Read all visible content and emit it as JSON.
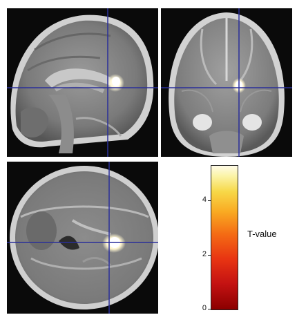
{
  "colorbar": {
    "label": "T-value",
    "ticks": [
      {
        "label": "4",
        "value": 4
      },
      {
        "label": "2",
        "value": 2
      },
      {
        "label": "0",
        "value": 0
      }
    ],
    "max_value": 5.3,
    "colors": [
      "#8b0000",
      "#e83412",
      "#f9aa22",
      "#f7d848",
      "#fffbe8"
    ]
  },
  "views": [
    "sagittal",
    "coronal",
    "axial"
  ],
  "crosshair_color": "#2a2f9a"
}
